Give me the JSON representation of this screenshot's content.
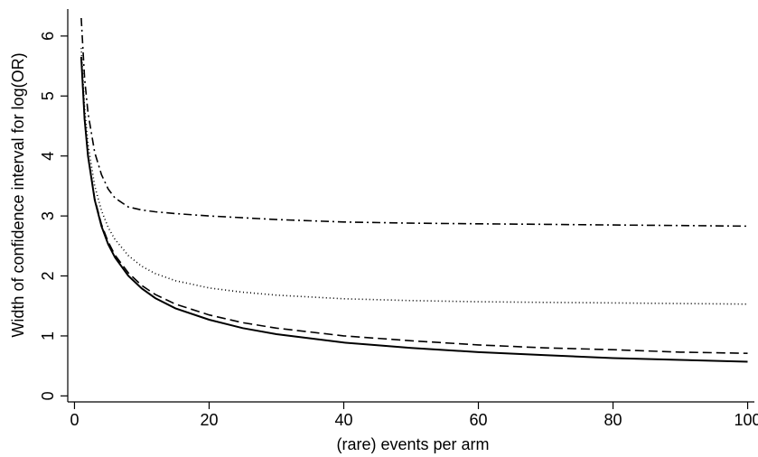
{
  "chart_data": {
    "type": "line",
    "title": "",
    "xlabel": "(rare) events per arm",
    "ylabel": "Width of confidence interval for log(OR)",
    "xlim": [
      -1,
      101
    ],
    "ylim": [
      -0.1,
      6.45
    ],
    "xticks": [
      0,
      20,
      40,
      60,
      80,
      100
    ],
    "yticks": [
      0,
      1,
      2,
      3,
      4,
      5,
      6
    ],
    "grid": false,
    "legend": "none",
    "x": [
      1,
      1.5,
      2,
      3,
      4,
      5,
      6,
      8,
      10,
      12,
      15,
      20,
      25,
      30,
      40,
      50,
      60,
      70,
      80,
      90,
      100
    ],
    "series": [
      {
        "line_style": "solid",
        "values": [
          5.65,
          4.62,
          4.0,
          3.27,
          2.83,
          2.53,
          2.31,
          2.0,
          1.79,
          1.63,
          1.46,
          1.27,
          1.13,
          1.03,
          0.89,
          0.8,
          0.73,
          0.68,
          0.63,
          0.6,
          0.57
        ]
      },
      {
        "line_style": "dashed",
        "values": [
          5.65,
          4.63,
          4.01,
          3.29,
          2.86,
          2.57,
          2.35,
          2.05,
          1.84,
          1.69,
          1.53,
          1.35,
          1.22,
          1.13,
          1.0,
          0.92,
          0.85,
          0.8,
          0.77,
          0.73,
          0.71
        ]
      },
      {
        "line_style": "dotted",
        "values": [
          5.8,
          4.8,
          4.2,
          3.5,
          3.09,
          2.81,
          2.61,
          2.34,
          2.16,
          2.04,
          1.92,
          1.8,
          1.73,
          1.68,
          1.62,
          1.59,
          1.57,
          1.56,
          1.55,
          1.54,
          1.53
        ]
      },
      {
        "line_style": "dashdot",
        "values": [
          6.3,
          5.3,
          4.72,
          4.06,
          3.69,
          3.45,
          3.3,
          3.15,
          3.1,
          3.07,
          3.04,
          3.0,
          2.97,
          2.94,
          2.9,
          2.88,
          2.87,
          2.86,
          2.85,
          2.84,
          2.83
        ]
      }
    ]
  }
}
